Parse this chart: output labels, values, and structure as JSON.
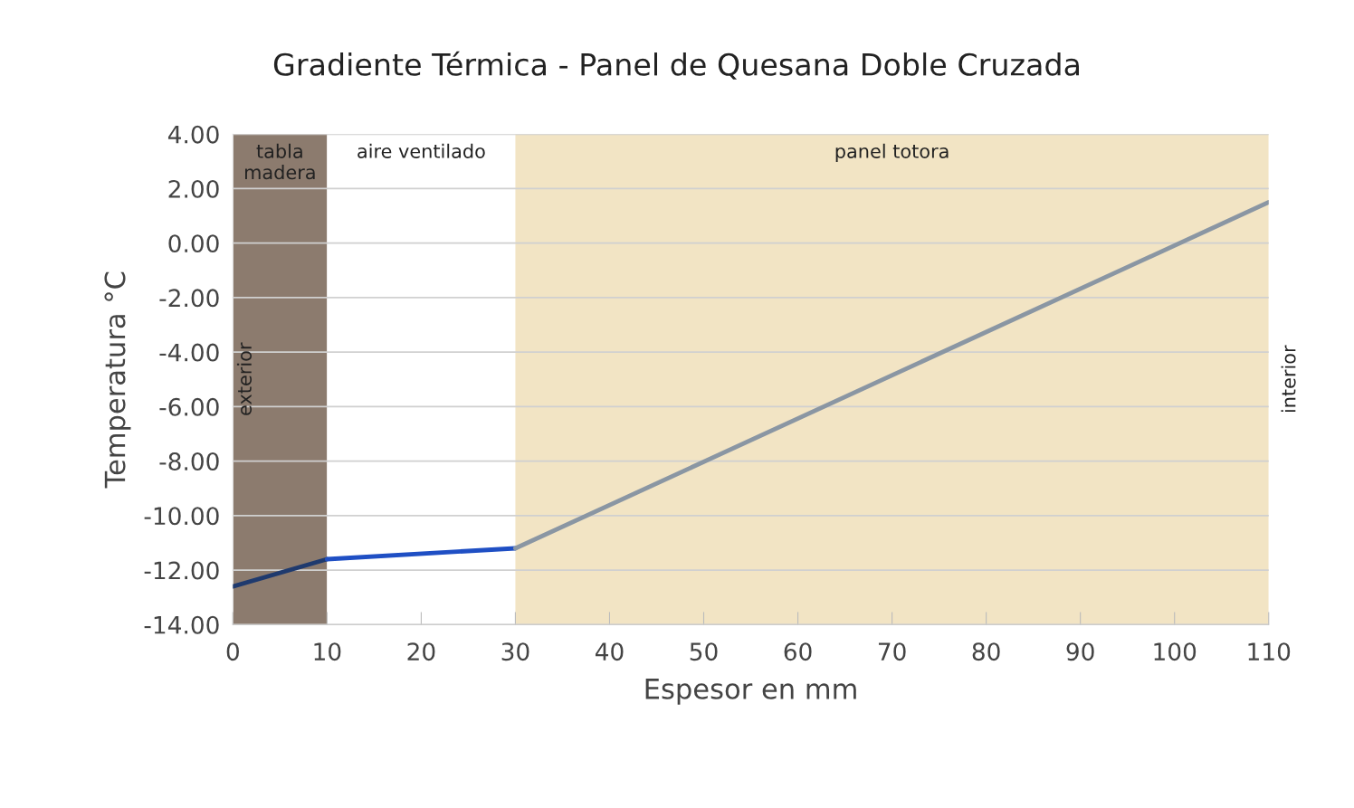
{
  "chart_data": {
    "type": "line",
    "title": "Gradiente Térmica - Panel de Quesana Doble Cruzada",
    "xlabel": "Espesor en mm",
    "ylabel": "Temperatura °C",
    "series": [
      {
        "x": [
          0,
          10
        ],
        "values": [
          -12.6,
          -11.6
        ],
        "color": "#1f3a6e"
      },
      {
        "x": [
          10,
          30
        ],
        "values": [
          -11.6,
          -11.2
        ],
        "color": "#1f4fc4"
      },
      {
        "x": [
          30,
          110
        ],
        "values": [
          -11.2,
          1.5
        ],
        "color": "#8a96a3"
      }
    ],
    "xlim": [
      0,
      110
    ],
    "xticks": [
      0,
      10,
      20,
      30,
      40,
      50,
      60,
      70,
      80,
      90,
      100,
      110
    ],
    "ylim": [
      -14,
      4
    ],
    "yticks": [
      {
        "value": -14,
        "label": "-14.00"
      },
      {
        "value": -12,
        "label": "-12.00"
      },
      {
        "value": -10,
        "label": "-10.00"
      },
      {
        "value": -8,
        "label": "-8.00"
      },
      {
        "value": -6,
        "label": "-6.00"
      },
      {
        "value": -4,
        "label": "-4.00"
      },
      {
        "value": -2,
        "label": "-2.00"
      },
      {
        "value": 0,
        "label": "0.00"
      },
      {
        "value": 2,
        "label": "2.00"
      },
      {
        "value": 4,
        "label": "4.00"
      }
    ],
    "bands": [
      {
        "axis": "x",
        "from": 0,
        "to": 10,
        "label": "tabla\nmadera",
        "color": "#8c7b6e"
      },
      {
        "axis": "x",
        "from": 10,
        "to": 30,
        "label": "aire ventilado",
        "color": "#ffffff"
      },
      {
        "axis": "x",
        "from": 30,
        "to": 110,
        "label": "panel totora",
        "color": "#f2e4c4"
      }
    ],
    "annotations": [
      "exterior",
      "interior"
    ],
    "grid": "y",
    "line_style": "solid",
    "marker": "none",
    "legend": false
  }
}
